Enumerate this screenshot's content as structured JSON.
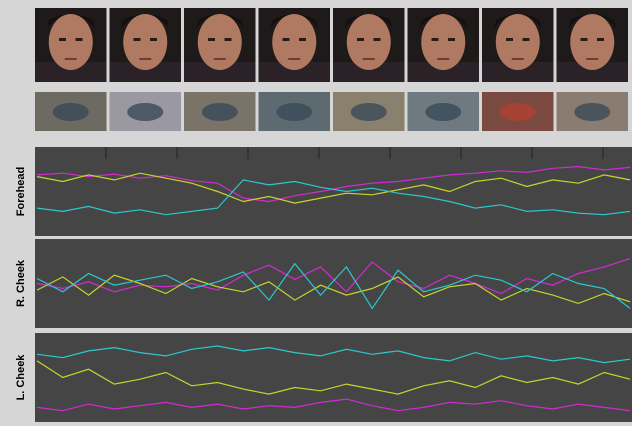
{
  "ylim": [
    0,
    100
  ],
  "panels": [
    {
      "label": "Forehead",
      "series": [
        {
          "color": "#d22bd2",
          "values": [
            70,
            72,
            68,
            71,
            66,
            69,
            63,
            60,
            42,
            38,
            45,
            50,
            56,
            60,
            62,
            66,
            70,
            72,
            75,
            73,
            78,
            80,
            76,
            79
          ]
        },
        {
          "color": "#c9d42c",
          "values": [
            68,
            62,
            70,
            64,
            72,
            66,
            60,
            50,
            38,
            44,
            36,
            42,
            48,
            46,
            52,
            58,
            50,
            62,
            66,
            56,
            64,
            60,
            70,
            64
          ]
        },
        {
          "color": "#2cc8cc",
          "values": [
            30,
            26,
            32,
            24,
            28,
            22,
            26,
            30,
            64,
            58,
            62,
            55,
            50,
            54,
            48,
            44,
            38,
            30,
            34,
            26,
            28,
            24,
            22,
            26
          ]
        }
      ]
    },
    {
      "label": "R. Cheek",
      "series": [
        {
          "color": "#d22bd2",
          "values": [
            50,
            44,
            52,
            40,
            48,
            46,
            50,
            42,
            60,
            72,
            55,
            70,
            40,
            76,
            52,
            44,
            60,
            50,
            38,
            56,
            48,
            62,
            70,
            80
          ]
        },
        {
          "color": "#c9d42c",
          "values": [
            42,
            58,
            36,
            60,
            50,
            38,
            56,
            46,
            40,
            52,
            30,
            48,
            36,
            44,
            58,
            34,
            46,
            50,
            30,
            44,
            36,
            26,
            38,
            28
          ]
        },
        {
          "color": "#2cc8cc",
          "values": [
            56,
            40,
            62,
            48,
            54,
            60,
            44,
            52,
            64,
            30,
            74,
            36,
            70,
            20,
            66,
            40,
            48,
            60,
            54,
            40,
            62,
            50,
            44,
            20
          ]
        }
      ]
    },
    {
      "label": "L. Cheek",
      "series": [
        {
          "color": "#2cc8cc",
          "values": [
            78,
            74,
            82,
            86,
            80,
            76,
            84,
            88,
            82,
            86,
            80,
            76,
            84,
            78,
            82,
            74,
            70,
            80,
            72,
            76,
            70,
            74,
            68,
            72
          ]
        },
        {
          "color": "#c9d42c",
          "values": [
            70,
            50,
            60,
            42,
            48,
            56,
            40,
            44,
            36,
            30,
            38,
            34,
            42,
            36,
            30,
            40,
            46,
            38,
            52,
            44,
            50,
            42,
            56,
            48
          ]
        },
        {
          "color": "#d22bd2",
          "values": [
            14,
            10,
            18,
            12,
            16,
            20,
            14,
            18,
            12,
            16,
            14,
            20,
            24,
            16,
            10,
            14,
            20,
            18,
            22,
            16,
            12,
            18,
            14,
            10
          ]
        }
      ]
    }
  ]
}
